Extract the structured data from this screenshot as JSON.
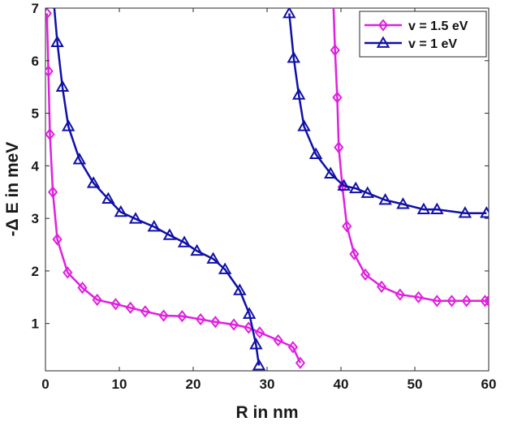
{
  "chart_data": {
    "type": "line",
    "xlabel": "R in nm",
    "ylabel": "-Δ E in meV",
    "xlim": [
      0,
      60
    ],
    "ylim": [
      0.1,
      7
    ],
    "x_ticks": [
      0,
      10,
      20,
      30,
      40,
      50,
      60
    ],
    "y_ticks": [
      1,
      2,
      3,
      4,
      5,
      6,
      7
    ],
    "legend_position": "top-right",
    "grid": false,
    "series": [
      {
        "name": "v = 1.5 eV",
        "color": "#e020e0",
        "marker": "diamond",
        "segments": [
          [
            [
              0.2,
              6.9
            ],
            [
              0.4,
              5.8
            ],
            [
              0.6,
              4.6
            ],
            [
              1.0,
              3.5
            ],
            [
              1.6,
              2.6
            ],
            [
              3.0,
              1.97
            ],
            [
              5.0,
              1.68
            ],
            [
              7.0,
              1.45
            ],
            [
              9.5,
              1.37
            ],
            [
              11.5,
              1.3
            ],
            [
              13.5,
              1.23
            ],
            [
              16.0,
              1.15
            ],
            [
              18.5,
              1.14
            ],
            [
              21.0,
              1.08
            ],
            [
              23.0,
              1.03
            ],
            [
              25.5,
              0.98
            ],
            [
              27.5,
              0.92
            ],
            [
              29.0,
              0.83
            ],
            [
              31.5,
              0.68
            ],
            [
              33.5,
              0.55
            ],
            [
              34.5,
              0.25
            ]
          ],
          [
            [
              39.0,
              7.0
            ],
            [
              39.2,
              6.2
            ],
            [
              39.5,
              5.3
            ],
            [
              39.7,
              4.35
            ],
            [
              40.2,
              3.6
            ],
            [
              40.8,
              2.85
            ],
            [
              41.8,
              2.32
            ],
            [
              43.3,
              1.93
            ],
            [
              45.5,
              1.7
            ],
            [
              48.0,
              1.55
            ],
            [
              50.5,
              1.5
            ],
            [
              53.0,
              1.43
            ],
            [
              55.0,
              1.43
            ],
            [
              57.0,
              1.43
            ],
            [
              59.5,
              1.43
            ],
            [
              60.0,
              1.43
            ]
          ]
        ]
      },
      {
        "name": "v = 1 eV",
        "color": "#1010a8",
        "marker": "triangle",
        "segments": [
          [
            [
              1.2,
              7.0
            ],
            [
              1.6,
              6.35
            ],
            [
              2.3,
              5.5
            ],
            [
              3.1,
              4.75
            ],
            [
              4.6,
              4.12
            ],
            [
              6.5,
              3.67
            ],
            [
              8.5,
              3.37
            ],
            [
              10.2,
              3.12
            ],
            [
              12.2,
              2.99
            ],
            [
              14.7,
              2.84
            ],
            [
              16.8,
              2.68
            ],
            [
              18.8,
              2.54
            ],
            [
              20.5,
              2.38
            ],
            [
              22.7,
              2.23
            ],
            [
              24.3,
              2.03
            ],
            [
              26.3,
              1.63
            ],
            [
              27.6,
              1.18
            ],
            [
              28.5,
              0.6
            ],
            [
              28.9,
              0.2
            ]
          ],
          [
            [
              33.0,
              6.9
            ],
            [
              33.6,
              6.05
            ],
            [
              34.3,
              5.35
            ],
            [
              35.0,
              4.75
            ],
            [
              36.6,
              4.22
            ],
            [
              38.6,
              3.85
            ],
            [
              40.4,
              3.62
            ],
            [
              42.0,
              3.57
            ],
            [
              43.6,
              3.48
            ],
            [
              46.0,
              3.35
            ],
            [
              48.4,
              3.27
            ],
            [
              51.2,
              3.17
            ],
            [
              53.0,
              3.17
            ],
            [
              56.8,
              3.1
            ],
            [
              59.7,
              3.1
            ]
          ]
        ]
      }
    ]
  }
}
